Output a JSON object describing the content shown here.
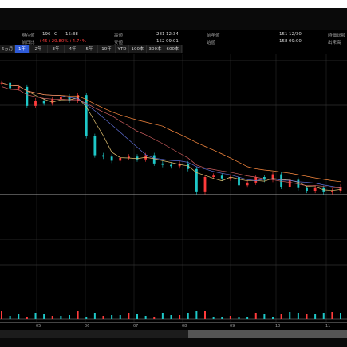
{
  "header": {
    "labels": {
      "prev_close": "現在値",
      "change_label": "前日比",
      "high": "高値",
      "low": "安値",
      "ytd_high": "前年値",
      "ytd_low": "始値",
      "market_cap": "時価総額",
      "volume": "出来高"
    },
    "values": {
      "price": "196",
      "price_flag": "C",
      "time": "15:38",
      "change": "+45",
      "change_pct": "+29.80%",
      "change_pct2": "+4.74%",
      "high_val": "281",
      "high_time": "12:34",
      "low_val": "152",
      "low_time": "09:01",
      "prev_val": "151",
      "prev_time": "12/30",
      "open_val": "158",
      "open_time": "09:00"
    }
  },
  "ranges": {
    "items": [
      "6ヵ月",
      "1年",
      "2年",
      "3年",
      "4年",
      "5年",
      "10年",
      "YTD",
      "100本",
      "300本",
      "600本"
    ],
    "active": "1年"
  },
  "axis": {
    "months": [
      "05",
      "06",
      "07",
      "08",
      "09",
      "10",
      "11"
    ]
  },
  "colors": {
    "up": "#ff3b3b",
    "down": "#1ec8c8",
    "ma_short": "#e0c070",
    "ma_mid": "#d06060",
    "ma_long": "#6070d8",
    "ma_vlong": "#ff8c40",
    "grid": "#4a4a4a"
  },
  "chart_data": {
    "type": "line",
    "title": "",
    "series": [
      {
        "values": [
          275,
          271,
          272,
          258,
          262,
          260,
          263,
          265,
          262,
          266,
          236,
          222,
          221,
          218,
          220,
          221,
          219,
          222,
          216,
          215,
          214,
          216,
          212,
          195,
          206,
          207,
          205,
          206,
          200,
          202,
          206,
          204,
          208,
          199,
          204,
          198,
          196,
          198,
          195,
          196,
          199
        ]
      }
    ],
    "grid": true
  }
}
